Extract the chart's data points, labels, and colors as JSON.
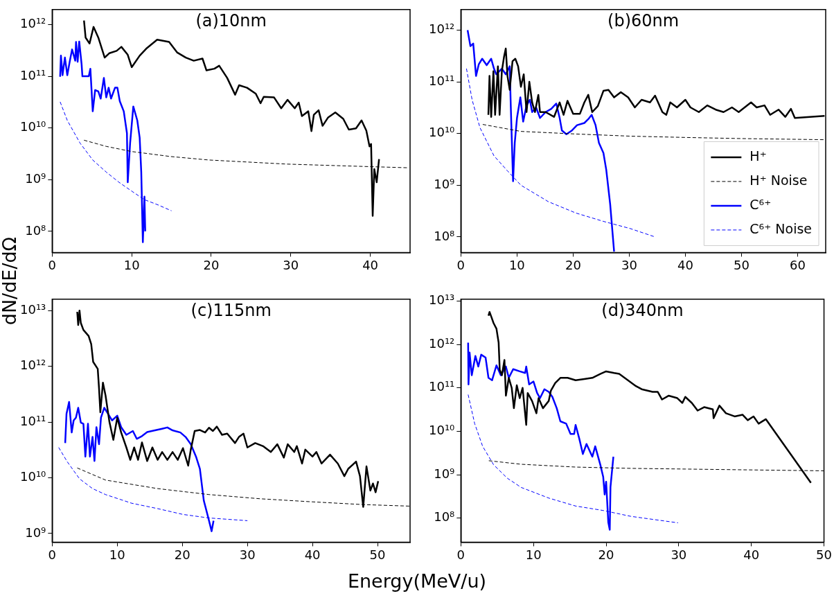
{
  "chart_data": [
    {
      "type": "line",
      "title": "(a)10nm",
      "ylabel": "dN/dE/dΩ",
      "log": "y",
      "legend": false,
      "xlim": [
        0,
        45
      ],
      "xticks": [
        0,
        10,
        20,
        30,
        40
      ],
      "ylim": [
        39000000.0,
        1950000000000.0
      ],
      "yticks": [
        {
          "value": 100000000.0,
          "label": "10⁸"
        },
        {
          "value": 1000000000.0,
          "label": "10⁹"
        },
        {
          "value": 10000000000.0,
          "label": "10¹⁰"
        },
        {
          "value": 100000000000.0,
          "label": "10¹¹"
        },
        {
          "value": 1000000000000.0,
          "label": "10¹²"
        }
      ],
      "series": [
        {
          "color": "#000000",
          "line_style": "solid",
          "x": [
            4.0,
            4.2,
            4.7,
            5.2,
            5.8,
            6.6,
            7.2,
            8.1,
            8.7,
            9.5,
            10.0,
            11.0,
            11.9,
            13.2,
            14.7,
            15.7,
            16.8,
            17.8,
            18.9,
            19.4,
            20.4,
            21.0,
            22.0,
            23.0,
            23.5,
            24.5,
            25.6,
            26.2,
            26.6,
            27.9,
            28.8,
            29.6,
            30.5,
            31.0,
            31.4,
            32.2,
            32.6,
            32.9,
            33.5,
            34.0,
            34.7,
            35.6,
            36.6,
            37.3,
            38.2,
            38.9,
            39.5,
            39.9,
            40.1,
            40.3,
            40.5,
            40.8,
            41.1
          ],
          "values": [
            1200000000000.0,
            560000000000.0,
            430000000000.0,
            900000000000.0,
            560000000000.0,
            230000000000.0,
            280000000000.0,
            310000000000.0,
            370000000000.0,
            260000000000.0,
            150000000000.0,
            250000000000.0,
            350000000000.0,
            510000000000.0,
            460000000000.0,
            290000000000.0,
            230000000000.0,
            200000000000.0,
            220000000000.0,
            130000000000.0,
            140000000000.0,
            160000000000.0,
            93000000000.0,
            44000000000.0,
            67000000000.0,
            60000000000.0,
            46000000000.0,
            30000000000.0,
            40000000000.0,
            39000000000.0,
            24000000000.0,
            35000000000.0,
            24000000000.0,
            31000000000.0,
            17000000000.0,
            21000000000.0,
            8700000000.0,
            18000000000.0,
            22000000000.0,
            11000000000.0,
            16000000000.0,
            20000000000.0,
            15000000000.0,
            9300000000.0,
            9800000000.0,
            14000000000.0,
            8900000000.0,
            4400000000.0,
            4900000000.0,
            200000000.0,
            1600000000.0,
            890000000.0,
            2500000000.0
          ]
        },
        {
          "color": "#000000",
          "line_style": "dashed",
          "x": [
            4.0,
            6.8,
            10,
            14.9,
            19.7,
            29.5,
            39.2,
            44.7
          ],
          "values": [
            5800000000.0,
            4400000000.0,
            3500000000.0,
            2800000000.0,
            2400000000.0,
            2000000000.0,
            1800000000.0,
            1700000000.0
          ]
        },
        {
          "color": "#0000ff",
          "line_style": "solid",
          "x": [
            1.0,
            1.1,
            1.3,
            1.6,
            1.9,
            2.2,
            2.5,
            2.9,
            3.0,
            3.2,
            3.4,
            3.7,
            3.8,
            4.6,
            4.8,
            5.1,
            5.4,
            5.8,
            6.1,
            6.5,
            6.8,
            7.1,
            7.4,
            7.9,
            8.2,
            8.5,
            9.0,
            9.4,
            9.5,
            9.8,
            10.2,
            10.7,
            11.0,
            11.2,
            11.4,
            11.6,
            11.7
          ],
          "values": [
            98000000000.0,
            250000000000.0,
            105000000000.0,
            230000000000.0,
            105000000000.0,
            190000000000.0,
            330000000000.0,
            200000000000.0,
            460000000000.0,
            190000000000.0,
            470000000000.0,
            170000000000.0,
            100000000000.0,
            100000000000.0,
            140000000000.0,
            21000000000.0,
            54000000000.0,
            51000000000.0,
            37000000000.0,
            93000000000.0,
            39000000000.0,
            60000000000.0,
            37000000000.0,
            60000000000.0,
            60000000000.0,
            33000000000.0,
            21000000000.0,
            7900000000.0,
            890000000.0,
            5100000000.0,
            26000000000.0,
            14000000000.0,
            6500000000.0,
            1400000000.0,
            62000000.0,
            470000000.0,
            100000000.0
          ]
        },
        {
          "color": "#0000ff",
          "line_style": "dashed",
          "x": [
            1.0,
            1.9,
            3.5,
            5.1,
            6.8,
            8.4,
            10,
            11.6,
            13.2,
            15
          ],
          "values": [
            32000000000.0,
            14000000000.0,
            5100000000.0,
            2400000000.0,
            1400000000.0,
            890000000.0,
            600000000.0,
            410000000.0,
            330000000.0,
            250000000.0
          ]
        }
      ]
    },
    {
      "type": "line",
      "title": "(b)60nm",
      "log": "y",
      "legend": "bottom right",
      "xlim": [
        0,
        65
      ],
      "xticks": [
        0,
        10,
        20,
        30,
        40,
        50,
        60
      ],
      "ylim": [
        50000000.0,
        2500000000000.0
      ],
      "yticks": [
        {
          "value": 100000000.0,
          "label": "10⁸"
        },
        {
          "value": 1000000000.0,
          "label": "10⁹"
        },
        {
          "value": 10000000000.0,
          "label": "10¹⁰"
        },
        {
          "value": 100000000000.0,
          "label": "10¹¹"
        },
        {
          "value": 1000000000000.0,
          "label": "10¹²"
        }
      ],
      "series": [
        {
          "name": "H⁺",
          "color": "#000000",
          "line_style": "solid",
          "x": [
            4.9,
            5.1,
            5.4,
            5.8,
            6.1,
            6.6,
            6.9,
            7.3,
            7.7,
            8.0,
            8.3,
            8.7,
            9.2,
            9.7,
            10.2,
            10.7,
            11.2,
            11.7,
            12.2,
            12.7,
            13.2,
            13.8,
            14.1,
            15.1,
            16.6,
            17.6,
            18.3,
            19.0,
            20,
            21.2,
            22.0,
            22.7,
            23.4,
            24.4,
            25.4,
            26.3,
            27.3,
            28.5,
            29.8,
            31.0,
            32.2,
            33.7,
            34.6,
            35.9,
            36.6,
            37.3,
            38.5,
            40.0,
            40.9,
            42.4,
            43.9,
            45.4,
            46.8,
            48.3,
            49.5,
            51.7,
            52.7,
            54.1,
            55.1,
            56.6,
            57.8,
            58.8,
            59.5,
            64.8
          ],
          "values": [
            23000000000.0,
            130000000000.0,
            21000000000.0,
            160000000000.0,
            23000000000.0,
            200000000000.0,
            23000000000.0,
            160000000000.0,
            310000000000.0,
            440000000000.0,
            130000000000.0,
            70000000000.0,
            250000000000.0,
            280000000000.0,
            200000000000.0,
            80000000000.0,
            140000000000.0,
            26000000000.0,
            100000000000.0,
            40000000000.0,
            26000000000.0,
            56000000000.0,
            26000000000.0,
            26000000000.0,
            21000000000.0,
            40000000000.0,
            23000000000.0,
            43000000000.0,
            24000000000.0,
            24000000000.0,
            40000000000.0,
            56000000000.0,
            26000000000.0,
            34000000000.0,
            67000000000.0,
            70000000000.0,
            50000000000.0,
            63000000000.0,
            50000000000.0,
            32000000000.0,
            45000000000.0,
            40000000000.0,
            54000000000.0,
            26000000000.0,
            23000000000.0,
            40000000000.0,
            32000000000.0,
            45000000000.0,
            32000000000.0,
            26000000000.0,
            35000000000.0,
            29000000000.0,
            26000000000.0,
            32000000000.0,
            26000000000.0,
            40000000000.0,
            32000000000.0,
            35000000000.0,
            23000000000.0,
            29000000000.0,
            21000000000.0,
            30000000000.0,
            20000000000.0,
            22000000000.0
          ]
        },
        {
          "name": "H⁺ Noise",
          "color": "#000000",
          "line_style": "dashed",
          "x": [
            3.9,
            10.7,
            20.5,
            30.2,
            40,
            49.8,
            64.8
          ],
          "values": [
            15000000000.0,
            11000000000.0,
            9800000000.0,
            8900000000.0,
            8400000000.0,
            8000000000.0,
            7600000000.0
          ]
        },
        {
          "name": "C⁶⁺",
          "color": "#0000ff",
          "line_style": "solid",
          "x": [
            1.2,
            1.7,
            2.2,
            2.7,
            3.2,
            3.8,
            4.6,
            5.4,
            5.9,
            6.3,
            7.3,
            8.0,
            8.7,
            8.9,
            9.3,
            9.6,
            10.0,
            10.6,
            11.1,
            11.7,
            12.3,
            12.7,
            13.4,
            14.1,
            15.1,
            16.1,
            17.0,
            17.6,
            18.0,
            18.8,
            19.8,
            20.7,
            22.0,
            22.7,
            23.3,
            24.0,
            24.6,
            25.4,
            25.9,
            26.6,
            27.3
          ],
          "values": [
            1000000000000.0,
            490000000000.0,
            550000000000.0,
            130000000000.0,
            220000000000.0,
            280000000000.0,
            210000000000.0,
            280000000000.0,
            180000000000.0,
            140000000000.0,
            180000000000.0,
            140000000000.0,
            200000000000.0,
            32000000000.0,
            1200000000.0,
            6600000000.0,
            20000000000.0,
            50000000000.0,
            17000000000.0,
            35000000000.0,
            45000000000.0,
            26000000000.0,
            32000000000.0,
            20000000000.0,
            26000000000.0,
            30000000000.0,
            38000000000.0,
            20000000000.0,
            11500000000.0,
            9700000000.0,
            11500000000.0,
            14500000000.0,
            16000000000.0,
            19000000000.0,
            23000000000.0,
            14500000000.0,
            6600000000.0,
            4200000000.0,
            2000000000.0,
            430000000.0,
            52000000.0
          ]
        },
        {
          "name": "C⁶⁺ Noise",
          "color": "#0000ff",
          "line_style": "dashed",
          "x": [
            1.0,
            2.0,
            3.4,
            5.9,
            8.3,
            10.7,
            15.6,
            20.5,
            25.4,
            30.2,
            34.6
          ],
          "values": [
            180000000000.0,
            45000000000.0,
            13000000000.0,
            3700000000.0,
            1900000000.0,
            1000000000.0,
            480000000.0,
            290000000.0,
            200000000.0,
            145000000.0,
            100000000.0
          ]
        }
      ]
    },
    {
      "type": "line",
      "title": "(c)115nm",
      "xlabel": "Energy(MeV/u)",
      "log": "y",
      "legend": false,
      "xlim": [
        0,
        55
      ],
      "xticks": [
        0,
        10,
        20,
        30,
        40,
        50
      ],
      "ylim": [
        700000000.0,
        16000000000000.0
      ],
      "yticks": [
        {
          "value": 1000000000.0,
          "label": "10⁹"
        },
        {
          "value": 10000000000.0,
          "label": "10¹⁰"
        },
        {
          "value": 100000000000.0,
          "label": "10¹¹"
        },
        {
          "value": 1000000000000.0,
          "label": "10¹²"
        },
        {
          "value": 10000000000000.0,
          "label": "10¹³"
        }
      ],
      "series": [
        {
          "color": "#000000",
          "line_style": "solid",
          "x": [
            3.85,
            4.0,
            4.2,
            4.4,
            4.8,
            5.6,
            6.0,
            6.3,
            7.0,
            7.2,
            7.4,
            7.8,
            8.2,
            8.8,
            9.4,
            10.0,
            10.6,
            11.4,
            12.0,
            12.6,
            13.2,
            13.8,
            14.6,
            15.4,
            16.2,
            16.9,
            17.7,
            18.5,
            19.3,
            20.1,
            20.9,
            21.3,
            21.9,
            22.7,
            23.5,
            24.1,
            24.7,
            25.3,
            26.1,
            26.9,
            28.1,
            28.7,
            29.4,
            30.0,
            31.2,
            32.4,
            33.6,
            34.6,
            35.6,
            36.2,
            37.2,
            37.6,
            38.4,
            38.9,
            40.0,
            40.6,
            41.4,
            42.7,
            43.9,
            44.9,
            45.5,
            46.7,
            47.3,
            47.8,
            48.3,
            48.9,
            49.3,
            49.7,
            50.1
          ],
          "values": [
            9500000000000.0,
            5500000000000.0,
            10000000000000.0,
            6000000000000.0,
            4500000000000.0,
            3500000000000.0,
            2500000000000.0,
            1200000000000.0,
            900000000000.0,
            400000000000.0,
            150000000000.0,
            510000000000.0,
            300000000000.0,
            100000000000.0,
            48000000000.0,
            120000000000.0,
            65000000000.0,
            35000000000.0,
            21000000000.0,
            35000000000.0,
            21000000000.0,
            43000000000.0,
            20000000000.0,
            35000000000.0,
            21000000000.0,
            29000000000.0,
            21000000000.0,
            29000000000.0,
            21000000000.0,
            34000000000.0,
            16500000000.0,
            32000000000.0,
            69000000000.0,
            72000000000.0,
            65000000000.0,
            79000000000.0,
            69000000000.0,
            83000000000.0,
            59000000000.0,
            62000000000.0,
            42000000000.0,
            54000000000.0,
            62000000000.0,
            35000000000.0,
            42000000000.0,
            37000000000.0,
            29000000000.0,
            40000000000.0,
            23000000000.0,
            40000000000.0,
            29000000000.0,
            37000000000.0,
            18000000000.0,
            32000000000.0,
            24000000000.0,
            29000000000.0,
            18000000000.0,
            26000000000.0,
            18000000000.0,
            10700000000.0,
            14500000000.0,
            19500000000.0,
            10700000000.0,
            3000000000.0,
            16000000000.0,
            5900000000.0,
            7900000000.0,
            5500000000.0,
            8700000000.0
          ]
        },
        {
          "color": "#000000",
          "line_style": "dashed",
          "x": [
            3.85,
            8.2,
            16.2,
            24.1,
            32.0,
            40,
            47.9,
            55
          ],
          "values": [
            15000000000.0,
            9100000000.0,
            6400000000.0,
            5000000000.0,
            4200000000.0,
            3700000000.0,
            3300000000.0,
            3100000000.0
          ]
        },
        {
          "color": "#0000ff",
          "line_style": "solid",
          "x": [
            2.0,
            2.2,
            2.6,
            3.0,
            3.3,
            3.65,
            4.0,
            4.4,
            4.8,
            5.1,
            5.5,
            5.8,
            6.2,
            6.5,
            6.8,
            7.2,
            7.5,
            8.0,
            8.6,
            9.2,
            10.0,
            10.6,
            11.4,
            12.4,
            13.0,
            13.8,
            14.6,
            15.8,
            16.9,
            17.7,
            18.5,
            19.7,
            20.5,
            21.3,
            22.1,
            22.7,
            23.3,
            23.9,
            24.1,
            24.5,
            24.8
          ],
          "values": [
            42000000000.0,
            140000000000.0,
            230000000000.0,
            65000000000.0,
            107000000000.0,
            120000000000.0,
            180000000000.0,
            98000000000.0,
            93000000000.0,
            24000000000.0,
            93000000000.0,
            24000000000.0,
            54000000000.0,
            20000000000.0,
            81000000000.0,
            40000000000.0,
            120000000000.0,
            180000000000.0,
            140000000000.0,
            107000000000.0,
            130000000000.0,
            81000000000.0,
            59000000000.0,
            69000000000.0,
            50000000000.0,
            56000000000.0,
            66000000000.0,
            71000000000.0,
            76000000000.0,
            80000000000.0,
            71000000000.0,
            65000000000.0,
            54000000000.0,
            40000000000.0,
            24000000000.0,
            14500000000.0,
            3900000000.0,
            2100000000.0,
            1700000000.0,
            1100000000.0,
            1700000000.0
          ]
        },
        {
          "color": "#0000ff",
          "line_style": "dashed",
          "x": [
            1.0,
            2.3,
            4.2,
            6.2,
            8.2,
            12.2,
            16.2,
            20.1,
            24.1,
            30.0
          ],
          "values": [
            35000000000.0,
            19500000000.0,
            9600000000.0,
            6400000000.0,
            5000000000.0,
            3500000000.0,
            2800000000.0,
            2200000000.0,
            1900000000.0,
            1700000000.0
          ]
        }
      ]
    },
    {
      "type": "line",
      "title": "(d)340nm",
      "log": "y",
      "legend": false,
      "xlim": [
        0,
        50
      ],
      "xticks": [
        0,
        10,
        20,
        30,
        40,
        50
      ],
      "ylim": [
        28000000.0,
        11000000000000.0
      ],
      "yticks": [
        {
          "value": 100000000.0,
          "label": "10⁸"
        },
        {
          "value": 1000000000.0,
          "label": "10⁹"
        },
        {
          "value": 10000000000.0,
          "label": "10¹⁰"
        },
        {
          "value": 100000000000.0,
          "label": "10¹¹"
        },
        {
          "value": 1000000000000.0,
          "label": "10¹²"
        },
        {
          "value": 10000000000000.0,
          "label": "10¹³"
        }
      ],
      "series": [
        {
          "color": "#000000",
          "line_style": "solid",
          "x": [
            3.8,
            3.95,
            4.2,
            4.5,
            4.9,
            5.2,
            5.35,
            5.65,
            6.0,
            6.2,
            6.6,
            7.0,
            7.3,
            7.7,
            8.1,
            8.5,
            9.0,
            9.2,
            9.8,
            10.4,
            10.7,
            11.3,
            12.1,
            12.4,
            13.0,
            13.7,
            14.7,
            15.8,
            17.0,
            18.1,
            19.2,
            20.0,
            21.1,
            21.8,
            23.0,
            24.1,
            24.9,
            26.4,
            27.1,
            27.7,
            28.6,
            29.8,
            30.5,
            30.9,
            31.8,
            32.6,
            33.5,
            34.7,
            34.8,
            35.6,
            36.5,
            37.7,
            38.8,
            39.5,
            40.3,
            41.0,
            42.0,
            48.2
          ],
          "values": [
            4600000000000.0,
            5600000000000.0,
            4300000000000.0,
            3100000000000.0,
            2300000000000.0,
            1100000000000.0,
            260000000000.0,
            195000000000.0,
            440000000000.0,
            66000000000.0,
            170000000000.0,
            100000000000.0,
            34000000000.0,
            115000000000.0,
            58000000000.0,
            100000000000.0,
            14000000000.0,
            76000000000.0,
            50000000000.0,
            26000000000.0,
            58000000000.0,
            34000000000.0,
            50000000000.0,
            87000000000.0,
            130000000000.0,
            170000000000.0,
            170000000000.0,
            150000000000.0,
            160000000000.0,
            170000000000.0,
            210000000000.0,
            240000000000.0,
            220000000000.0,
            210000000000.0,
            150000000000.0,
            110000000000.0,
            93000000000.0,
            81000000000.0,
            81000000000.0,
            54000000000.0,
            66000000000.0,
            58000000000.0,
            45000000000.0,
            62000000000.0,
            45000000000.0,
            30000000000.0,
            36000000000.0,
            32000000000.0,
            20000000000.0,
            39000000000.0,
            26000000000.0,
            22000000000.0,
            24000000000.0,
            18000000000.0,
            22000000000.0,
            15000000000.0,
            19000000000.0,
            650000000.0
          ]
        },
        {
          "color": "#000000",
          "line_style": "dashed",
          "x": [
            3.85,
            8.3,
            15.8,
            23.4,
            30.9,
            38.4,
            50
          ],
          "values": [
            2100000000.0,
            1740000000.0,
            1500000000.0,
            1400000000.0,
            1350000000.0,
            1300000000.0,
            1230000000.0
          ]
        },
        {
          "color": "#0000ff",
          "line_style": "solid",
          "x": [
            1.0,
            1.05,
            1.2,
            1.5,
            2.0,
            2.4,
            2.8,
            3.4,
            3.8,
            4.3,
            4.9,
            5.5,
            6.2,
            6.6,
            7.2,
            8.1,
            8.85,
            9.0,
            9.4,
            10.0,
            10.5,
            10.9,
            11.5,
            12.1,
            12.6,
            13.2,
            13.7,
            14.5,
            15.1,
            15.6,
            15.8,
            16.3,
            16.8,
            17.3,
            18.1,
            18.5,
            19.2,
            19.6,
            19.8,
            20.0,
            20.3,
            20.5,
            20.6,
            21.0
          ],
          "values": [
            1100000000000.0,
            120000000000.0,
            650000000000.0,
            195000000000.0,
            540000000000.0,
            310000000000.0,
            580000000000.0,
            500000000000.0,
            170000000000.0,
            150000000000.0,
            330000000000.0,
            195000000000.0,
            310000000000.0,
            170000000000.0,
            270000000000.0,
            240000000000.0,
            220000000000.0,
            310000000000.0,
            120000000000.0,
            140000000000.0,
            76000000000.0,
            58000000000.0,
            93000000000.0,
            81000000000.0,
            62000000000.0,
            34000000000.0,
            17000000000.0,
            15000000000.0,
            8700000000.0,
            8700000000.0,
            14000000000.0,
            6800000000.0,
            3000000000.0,
            5100000000.0,
            2600000000.0,
            4500000000.0,
            1700000000.0,
            890000000.0,
            350000000.0,
            690000000.0,
            80000000.0,
            54000000.0,
            520000000.0,
            2600000000.0
          ]
        },
        {
          "color": "#0000ff",
          "line_style": "dashed",
          "x": [
            1.0,
            1.9,
            3.0,
            4.5,
            6.4,
            8.3,
            12.1,
            15.8,
            19.6,
            23.4,
            29.9
          ],
          "values": [
            70000000000.0,
            15000000000.0,
            4500000000.0,
            1700000000.0,
            830000000.0,
            510000000.0,
            290000000.0,
            190000000.0,
            150000000.0,
            110000000.0,
            78000000.0
          ]
        }
      ]
    }
  ]
}
